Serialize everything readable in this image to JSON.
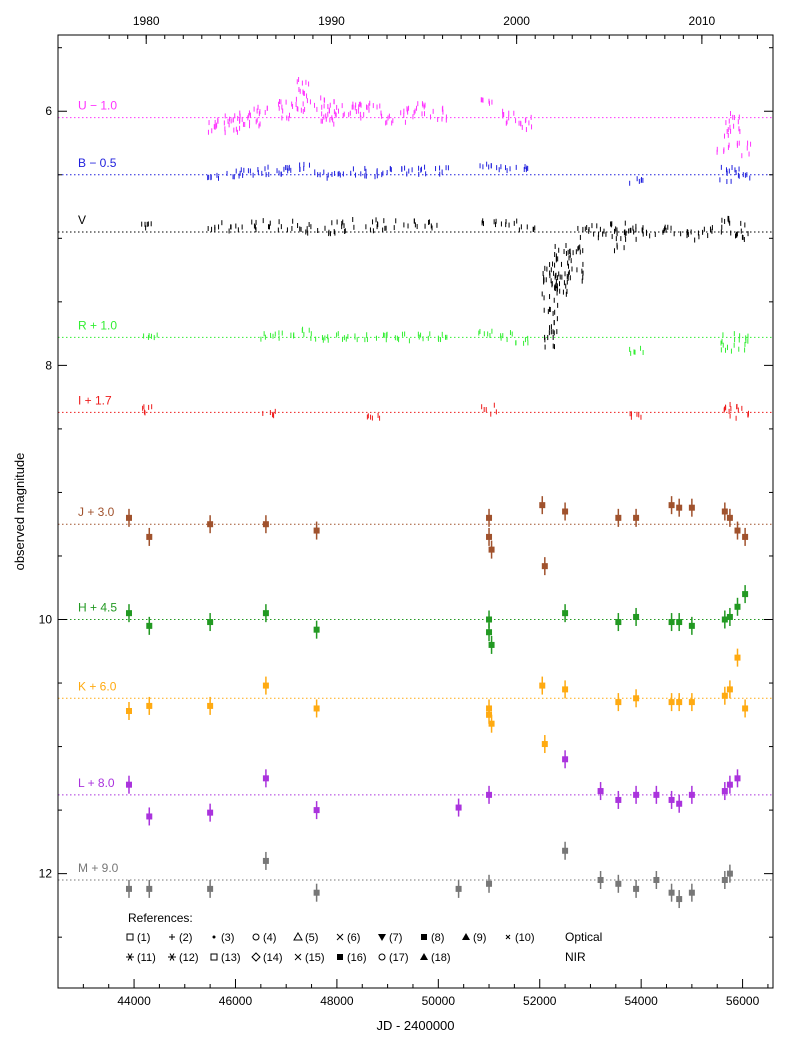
{
  "chart_data": {
    "type": "scatter",
    "xlabel": "JD - 2400000",
    "ylabel": "observed magnitude",
    "xlim": [
      42500,
      56600
    ],
    "ylim": [
      5.4,
      12.9
    ],
    "y_inverted": true,
    "x_ticks": [
      44000,
      46000,
      48000,
      50000,
      52000,
      54000,
      56000
    ],
    "y_ticks": [
      6,
      8,
      10,
      12
    ],
    "top_axis_ticks": [
      {
        "value": 1980,
        "jd": 44239.5
      },
      {
        "value": 1990,
        "jd": 47892.5
      },
      {
        "value": 2000,
        "jd": 51544.5
      },
      {
        "value": 2010,
        "jd": 55197.5
      }
    ],
    "grid": false,
    "series": [
      {
        "name": "U − 1.0",
        "color": "#ff33ff",
        "baseline": 6.05,
        "segments": [
          [
            45600,
            6.12,
            0.06
          ],
          [
            45900,
            6.1,
            0.07
          ],
          [
            46100,
            6.08,
            0.08
          ],
          [
            46350,
            6.05,
            0.07
          ],
          [
            46600,
            5.98,
            0.04
          ],
          [
            47000,
            6.0,
            0.08
          ],
          [
            47350,
            5.88,
            0.13
          ],
          [
            47700,
            5.98,
            0.1
          ],
          [
            48000,
            6.02,
            0.1
          ],
          [
            48350,
            6.0,
            0.06
          ],
          [
            48500,
            5.98,
            0.05
          ],
          [
            48700,
            5.95,
            0.04
          ],
          [
            49000,
            6.05,
            0.05
          ],
          [
            49400,
            6.03,
            0.06
          ],
          [
            49700,
            6.0,
            0.06
          ],
          [
            50050,
            6.02,
            0.05
          ],
          [
            51000,
            5.92,
            0.02
          ],
          [
            51400,
            6.05,
            0.07
          ],
          [
            51750,
            6.1,
            0.06
          ],
          [
            55650,
            6.3,
            0.04
          ],
          [
            55800,
            6.1,
            0.1
          ],
          [
            56050,
            6.3,
            0.05
          ]
        ]
      },
      {
        "name": "B − 0.5",
        "color": "#1f1fdd",
        "baseline": 6.5,
        "segments": [
          [
            45600,
            6.52,
            0.02
          ],
          [
            45950,
            6.5,
            0.03
          ],
          [
            46200,
            6.48,
            0.03
          ],
          [
            46500,
            6.47,
            0.03
          ],
          [
            46800,
            6.48,
            0.03
          ],
          [
            47100,
            6.47,
            0.04
          ],
          [
            47400,
            6.45,
            0.04
          ],
          [
            47700,
            6.5,
            0.03
          ],
          [
            48000,
            6.48,
            0.03
          ],
          [
            48400,
            6.48,
            0.03
          ],
          [
            48700,
            6.49,
            0.03
          ],
          [
            49000,
            6.48,
            0.03
          ],
          [
            49400,
            6.47,
            0.03
          ],
          [
            49700,
            6.47,
            0.03
          ],
          [
            50050,
            6.47,
            0.03
          ],
          [
            50950,
            6.42,
            0.02
          ],
          [
            51300,
            6.45,
            0.02
          ],
          [
            51650,
            6.45,
            0.02
          ],
          [
            53900,
            6.55,
            0.03
          ],
          [
            55700,
            6.5,
            0.06
          ],
          [
            56000,
            6.5,
            0.05
          ]
        ]
      },
      {
        "name": "V",
        "color": "#000000",
        "baseline": 6.95,
        "segments": [
          [
            44300,
            6.9,
            0.02
          ],
          [
            45600,
            6.9,
            0.03
          ],
          [
            46000,
            6.92,
            0.03
          ],
          [
            46400,
            6.9,
            0.04
          ],
          [
            46800,
            6.9,
            0.04
          ],
          [
            47150,
            6.9,
            0.04
          ],
          [
            47500,
            6.93,
            0.04
          ],
          [
            47850,
            6.92,
            0.05
          ],
          [
            48250,
            6.9,
            0.05
          ],
          [
            48650,
            6.9,
            0.05
          ],
          [
            49050,
            6.9,
            0.04
          ],
          [
            49450,
            6.88,
            0.03
          ],
          [
            49850,
            6.9,
            0.03
          ],
          [
            51000,
            6.88,
            0.02
          ],
          [
            51400,
            6.88,
            0.02
          ],
          [
            51750,
            6.92,
            0.02
          ],
          [
            52200,
            7.55,
            0.35
          ],
          [
            52450,
            7.25,
            0.2
          ],
          [
            52700,
            7.2,
            0.15
          ],
          [
            52900,
            6.95,
            0.05
          ],
          [
            53200,
            6.95,
            0.05
          ],
          [
            53550,
            7.0,
            0.12
          ],
          [
            53800,
            6.95,
            0.06
          ],
          [
            54150,
            6.95,
            0.05
          ],
          [
            54500,
            6.95,
            0.05
          ],
          [
            54900,
            6.97,
            0.05
          ],
          [
            55250,
            6.95,
            0.05
          ],
          [
            55700,
            6.9,
            0.06
          ],
          [
            56000,
            6.95,
            0.07
          ]
        ]
      },
      {
        "name": "R + 1.0",
        "color": "#33ee33",
        "baseline": 7.78,
        "segments": [
          [
            44300,
            7.78,
            0.02
          ],
          [
            46650,
            7.78,
            0.03
          ],
          [
            47000,
            7.77,
            0.03
          ],
          [
            47350,
            7.75,
            0.04
          ],
          [
            47700,
            7.78,
            0.03
          ],
          [
            48100,
            7.78,
            0.03
          ],
          [
            48500,
            7.78,
            0.03
          ],
          [
            48900,
            7.77,
            0.03
          ],
          [
            49300,
            7.78,
            0.03
          ],
          [
            49700,
            7.78,
            0.03
          ],
          [
            50050,
            7.78,
            0.03
          ],
          [
            50950,
            7.75,
            0.02
          ],
          [
            51300,
            7.77,
            0.03
          ],
          [
            51650,
            7.8,
            0.03
          ],
          [
            53900,
            7.88,
            0.03
          ],
          [
            55700,
            7.82,
            0.07
          ],
          [
            56000,
            7.82,
            0.06
          ]
        ]
      },
      {
        "name": "I + 1.7",
        "color": "#ee1c1c",
        "baseline": 8.37,
        "segments": [
          [
            44300,
            8.35,
            0.03
          ],
          [
            46650,
            8.38,
            0.02
          ],
          [
            48700,
            8.4,
            0.02
          ],
          [
            51000,
            8.35,
            0.04
          ],
          [
            53900,
            8.4,
            0.02
          ],
          [
            55700,
            8.35,
            0.05
          ],
          [
            56000,
            8.37,
            0.05
          ]
        ]
      },
      {
        "name": "J + 3.0",
        "color": "#a0522d",
        "baseline": 9.25,
        "segments": []
      },
      {
        "name": "H + 4.5",
        "color": "#229922",
        "baseline": 10.0,
        "segments": []
      },
      {
        "name": "K + 6.0",
        "color": "#ffaa11",
        "baseline": 10.62,
        "segments": []
      },
      {
        "name": "L + 8.0",
        "color": "#aa33dd",
        "baseline": 11.38,
        "segments": []
      },
      {
        "name": "M + 9.0",
        "color": "#777777",
        "baseline": 12.05,
        "segments": []
      }
    ],
    "nir_points": [
      {
        "band": 5,
        "points": [
          [
            43900,
            9.2
          ],
          [
            44300,
            9.35
          ],
          [
            45500,
            9.25
          ],
          [
            46600,
            9.25
          ],
          [
            47600,
            9.3
          ],
          [
            51000,
            9.2
          ],
          [
            51000,
            9.35
          ],
          [
            51050,
            9.45
          ],
          [
            52050,
            9.1
          ],
          [
            52100,
            9.58
          ],
          [
            52500,
            9.15
          ],
          [
            53550,
            9.2
          ],
          [
            53900,
            9.2
          ],
          [
            54600,
            9.1
          ],
          [
            54750,
            9.12
          ],
          [
            55000,
            9.12
          ],
          [
            55650,
            9.15
          ],
          [
            55750,
            9.2
          ],
          [
            55900,
            9.3
          ],
          [
            56050,
            9.35
          ]
        ]
      },
      {
        "band": 6,
        "points": [
          [
            43900,
            9.95
          ],
          [
            44300,
            10.05
          ],
          [
            45500,
            10.02
          ],
          [
            46600,
            9.95
          ],
          [
            47600,
            10.08
          ],
          [
            51000,
            10.0
          ],
          [
            51000,
            10.1
          ],
          [
            51050,
            10.2
          ],
          [
            52500,
            9.95
          ],
          [
            53550,
            10.02
          ],
          [
            53900,
            9.98
          ],
          [
            54600,
            10.02
          ],
          [
            54750,
            10.02
          ],
          [
            55000,
            10.05
          ],
          [
            55650,
            10.0
          ],
          [
            55750,
            9.98
          ],
          [
            55900,
            9.9
          ],
          [
            56050,
            9.8
          ]
        ]
      },
      {
        "band": 7,
        "points": [
          [
            43900,
            10.72
          ],
          [
            44300,
            10.68
          ],
          [
            45500,
            10.68
          ],
          [
            46600,
            10.52
          ],
          [
            47600,
            10.7
          ],
          [
            51000,
            10.7
          ],
          [
            51000,
            10.75
          ],
          [
            51050,
            10.82
          ],
          [
            52050,
            10.52
          ],
          [
            52100,
            10.98
          ],
          [
            52500,
            10.55
          ],
          [
            53550,
            10.65
          ],
          [
            53900,
            10.62
          ],
          [
            54600,
            10.65
          ],
          [
            54750,
            10.65
          ],
          [
            55000,
            10.65
          ],
          [
            55650,
            10.6
          ],
          [
            55750,
            10.55
          ],
          [
            55900,
            10.3
          ],
          [
            56050,
            10.7
          ]
        ]
      },
      {
        "band": 8,
        "points": [
          [
            43900,
            11.3
          ],
          [
            44300,
            11.55
          ],
          [
            45500,
            11.52
          ],
          [
            46600,
            11.25
          ],
          [
            47600,
            11.5
          ],
          [
            50400,
            11.48
          ],
          [
            51000,
            11.38
          ],
          [
            52500,
            11.1
          ],
          [
            53200,
            11.35
          ],
          [
            53550,
            11.42
          ],
          [
            53900,
            11.38
          ],
          [
            54300,
            11.38
          ],
          [
            54600,
            11.42
          ],
          [
            54750,
            11.45
          ],
          [
            55000,
            11.38
          ],
          [
            55650,
            11.35
          ],
          [
            55750,
            11.3
          ],
          [
            55900,
            11.25
          ]
        ]
      },
      {
        "band": 9,
        "points": [
          [
            43900,
            12.12
          ],
          [
            44300,
            12.12
          ],
          [
            45500,
            12.12
          ],
          [
            46600,
            11.9
          ],
          [
            47600,
            12.15
          ],
          [
            50400,
            12.12
          ],
          [
            51000,
            12.08
          ],
          [
            52500,
            11.82
          ],
          [
            53200,
            12.05
          ],
          [
            53550,
            12.08
          ],
          [
            53900,
            12.12
          ],
          [
            54300,
            12.05
          ],
          [
            54600,
            12.15
          ],
          [
            54750,
            12.2
          ],
          [
            55000,
            12.15
          ],
          [
            55650,
            12.05
          ],
          [
            55750,
            12.0
          ]
        ]
      }
    ],
    "references": {
      "title": "References:",
      "optical_label": "Optical",
      "nir_label": "NIR",
      "optical": [
        {
          "label": "(1)",
          "marker": "square-open"
        },
        {
          "label": "(2)",
          "marker": "plus"
        },
        {
          "label": "(3)",
          "marker": "dot"
        },
        {
          "label": "(4)",
          "marker": "circle-open"
        },
        {
          "label": "(5)",
          "marker": "triangle-open"
        },
        {
          "label": "(6)",
          "marker": "x"
        },
        {
          "label": "(7)",
          "marker": "triangle-down"
        },
        {
          "label": "(8)",
          "marker": "square"
        },
        {
          "label": "(9)",
          "marker": "triangle"
        },
        {
          "label": "(10)",
          "marker": "x-small"
        }
      ],
      "nir": [
        {
          "label": "(11)",
          "marker": "star"
        },
        {
          "label": "(12)",
          "marker": "asterisk"
        },
        {
          "label": "(13)",
          "marker": "square-open-small"
        },
        {
          "label": "(14)",
          "marker": "diamond-open"
        },
        {
          "label": "(15)",
          "marker": "x"
        },
        {
          "label": "(16)",
          "marker": "square"
        },
        {
          "label": "(17)",
          "marker": "circle-open"
        },
        {
          "label": "(18)",
          "marker": "triangle"
        }
      ]
    }
  }
}
